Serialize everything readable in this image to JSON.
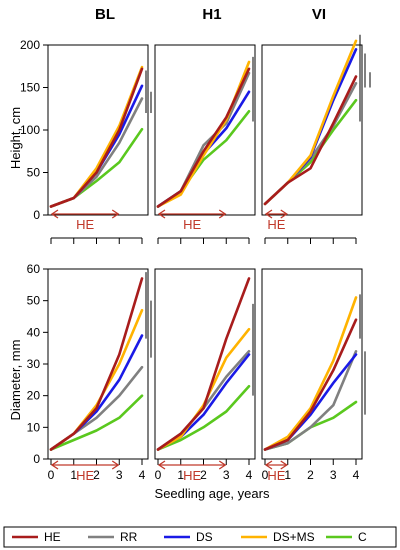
{
  "chart_data": {
    "type": "line",
    "sites": [
      "BL",
      "H1",
      "VI"
    ],
    "x": [
      0,
      1,
      2,
      3,
      4
    ],
    "xlabel": "Seedling age, years",
    "treatment_band_label": "HE",
    "legend": [
      {
        "name": "HE",
        "color": "#a81c1c"
      },
      {
        "name": "RR",
        "color": "#808080"
      },
      {
        "name": "DS",
        "color": "#1a1ae6"
      },
      {
        "name": "DS+MS",
        "color": "#ffb300"
      },
      {
        "name": "C",
        "color": "#5ac81e"
      }
    ],
    "rows": [
      {
        "ylabel": "Height, cm",
        "ylim": [
          0,
          200
        ],
        "yticks": [
          0,
          50,
          100,
          150,
          200
        ],
        "panels": [
          {
            "site": "BL",
            "he_band": [
              0,
              3
            ],
            "sig_bars": [
              [
                170,
                120
              ],
              [
                145,
                120
              ]
            ],
            "series": [
              {
                "name": "HE",
                "values": [
                  10,
                  20,
                  50,
                  100,
                  172
                ]
              },
              {
                "name": "RR",
                "values": [
                  10,
                  20,
                  45,
                  85,
                  137
                ]
              },
              {
                "name": "DS",
                "values": [
                  10,
                  20,
                  50,
                  95,
                  152
                ]
              },
              {
                "name": "DS+MS",
                "values": [
                  10,
                  20,
                  55,
                  105,
                  174
                ]
              },
              {
                "name": "C",
                "values": [
                  10,
                  20,
                  40,
                  62,
                  101
                ]
              }
            ]
          },
          {
            "site": "H1",
            "he_band": [
              0,
              3
            ],
            "sig_bars": [
              [
                186,
                110
              ]
            ],
            "series": [
              {
                "name": "HE",
                "values": [
                  10,
                  28,
                  75,
                  115,
                  172
                ]
              },
              {
                "name": "RR",
                "values": [
                  10,
                  28,
                  82,
                  108,
                  167
                ]
              },
              {
                "name": "DS",
                "values": [
                  10,
                  28,
                  72,
                  102,
                  145
                ]
              },
              {
                "name": "DS+MS",
                "values": [
                  10,
                  24,
                  70,
                  112,
                  180
                ]
              },
              {
                "name": "C",
                "values": [
                  10,
                  28,
                  65,
                  88,
                  122
                ]
              }
            ]
          },
          {
            "site": "VI",
            "he_band": [
              0,
              1
            ],
            "sig_bars": [
              [
                212,
                110
              ],
              [
                190,
                150
              ],
              [
                168,
                150
              ]
            ],
            "series": [
              {
                "name": "HE",
                "values": [
                  13,
                  38,
                  55,
                  108,
                  163
                ]
              },
              {
                "name": "RR",
                "values": [
                  13,
                  38,
                  66,
                  105,
                  155
                ]
              },
              {
                "name": "DS",
                "values": [
                  13,
                  38,
                  68,
                  135,
                  195
                ]
              },
              {
                "name": "DS+MS",
                "values": [
                  13,
                  38,
                  70,
                  140,
                  205
                ]
              },
              {
                "name": "C",
                "values": [
                  13,
                  38,
                  62,
                  100,
                  135
                ]
              }
            ]
          }
        ]
      },
      {
        "ylabel": "Diameter, mm",
        "ylim": [
          0,
          60
        ],
        "yticks": [
          0,
          10,
          20,
          30,
          40,
          50,
          60
        ],
        "panels": [
          {
            "site": "BL",
            "he_band": [
              0,
              3
            ],
            "sig_bars": [
              [
                59,
                38
              ],
              [
                50,
                32
              ]
            ],
            "series": [
              {
                "name": "HE",
                "values": [
                  3,
                  8,
                  16,
                  33,
                  57
                ]
              },
              {
                "name": "RR",
                "values": [
                  3,
                  8,
                  13,
                  20,
                  29
                ]
              },
              {
                "name": "DS",
                "values": [
                  3,
                  8,
                  15,
                  25,
                  39
                ]
              },
              {
                "name": "DS+MS",
                "values": [
                  3,
                  8,
                  17,
                  30,
                  47
                ]
              },
              {
                "name": "C",
                "values": [
                  3,
                  6,
                  9,
                  13,
                  20
                ]
              }
            ]
          },
          {
            "site": "H1",
            "he_band": [
              0,
              3
            ],
            "sig_bars": [
              [
                49,
                20
              ]
            ],
            "series": [
              {
                "name": "HE",
                "values": [
                  3,
                  8,
                  16,
                  38,
                  57
                ]
              },
              {
                "name": "RR",
                "values": [
                  3,
                  8,
                  16,
                  26,
                  34
                ]
              },
              {
                "name": "DS",
                "values": [
                  3,
                  7,
                  14,
                  24,
                  33
                ]
              },
              {
                "name": "DS+MS",
                "values": [
                  3,
                  7,
                  17,
                  32,
                  41
                ]
              },
              {
                "name": "C",
                "values": [
                  3,
                  6,
                  10,
                  15,
                  23
                ]
              }
            ]
          },
          {
            "site": "VI",
            "he_band": [
              0,
              1
            ],
            "sig_bars": [
              [
                52,
                38
              ],
              [
                34,
                14
              ]
            ],
            "series": [
              {
                "name": "HE",
                "values": [
                  3,
                  6,
                  15,
                  28,
                  44
                ]
              },
              {
                "name": "RR",
                "values": [
                  3,
                  5,
                  10,
                  17,
                  34
                ]
              },
              {
                "name": "DS",
                "values": [
                  3,
                  6,
                  14,
                  24,
                  33
                ]
              },
              {
                "name": "DS+MS",
                "values": [
                  3,
                  7,
                  16,
                  31,
                  51
                ]
              },
              {
                "name": "C",
                "values": [
                  3,
                  5,
                  10,
                  13,
                  18
                ]
              }
            ]
          }
        ]
      }
    ]
  }
}
